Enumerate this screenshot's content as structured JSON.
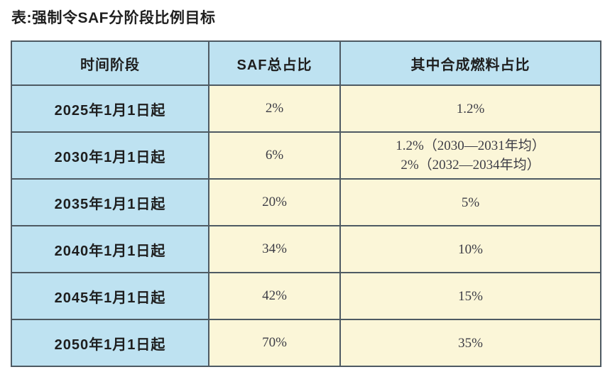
{
  "title": "表:强制令SAF分阶段比例目标",
  "colors": {
    "header_bg": "#bee2f1",
    "period_col_bg": "#bee2f1",
    "value_cell_bg": "#fbf6d8",
    "border": "#4e5a63",
    "title_text": "#1f1f1f",
    "value_text": "#3d3d46"
  },
  "table": {
    "headers": [
      "时间阶段",
      "SAF总占比",
      "其中合成燃料占比"
    ],
    "rows": [
      {
        "period": "2025年1月1日起",
        "saf_share": "2%",
        "synthetic_share": [
          "1.2%"
        ]
      },
      {
        "period": "2030年1月1日起",
        "saf_share": "6%",
        "synthetic_share": [
          "1.2%（2030—2031年均）",
          "2%（2032—2034年均）"
        ]
      },
      {
        "period": "2035年1月1日起",
        "saf_share": "20%",
        "synthetic_share": [
          "5%"
        ]
      },
      {
        "period": "2040年1月1日起",
        "saf_share": "34%",
        "synthetic_share": [
          "10%"
        ]
      },
      {
        "period": "2045年1月1日起",
        "saf_share": "42%",
        "synthetic_share": [
          "15%"
        ]
      },
      {
        "period": "2050年1月1日起",
        "saf_share": "70%",
        "synthetic_share": [
          "35%"
        ]
      }
    ]
  }
}
